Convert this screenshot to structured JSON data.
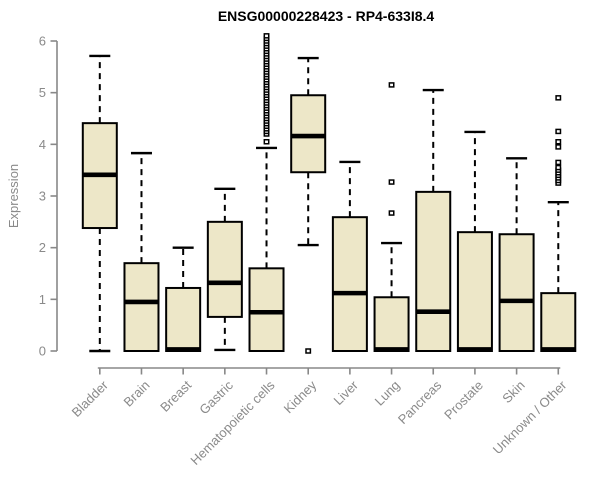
{
  "chart_data": {
    "type": "boxplot",
    "title": "ENSG00000228423 - RP4-633I8.4",
    "ylabel": "Expression",
    "xlabel": "",
    "ylim": [
      0,
      6
    ],
    "yticks": [
      0,
      1,
      2,
      3,
      4,
      5,
      6
    ],
    "grid": "off",
    "legend": "none",
    "categories": [
      "Bladder",
      "Brain",
      "Breast",
      "Gastric",
      "Hematopoietic cells",
      "Kidney",
      "Liver",
      "Lung",
      "Pancreas",
      "Prostate",
      "Skin",
      "Unknown / Other"
    ],
    "series": [
      {
        "category": "Bladder",
        "whisker_low": 0,
        "q1": 2.38,
        "median": 3.41,
        "q3": 4.41,
        "whisker_high": 5.71,
        "outliers": []
      },
      {
        "category": "Brain",
        "whisker_low": 0,
        "q1": 0,
        "median": 0.95,
        "q3": 1.7,
        "whisker_high": 3.83,
        "outliers": []
      },
      {
        "category": "Breast",
        "whisker_low": 0,
        "q1": 0,
        "median": 0.03,
        "q3": 1.22,
        "whisker_high": 2.0,
        "outliers": []
      },
      {
        "category": "Gastric",
        "whisker_low": 0.02,
        "q1": 0.66,
        "median": 1.32,
        "q3": 2.5,
        "whisker_high": 3.14,
        "outliers": []
      },
      {
        "category": "Hematopoietic cells",
        "whisker_low": 0,
        "q1": 0,
        "median": 0.75,
        "q3": 1.6,
        "whisker_high": 3.93,
        "outliers": [
          4.05,
          4.2,
          4.25,
          4.3,
          4.35,
          4.4,
          4.45,
          4.5,
          4.55,
          4.6,
          4.65,
          4.7,
          4.75,
          4.8,
          4.85,
          4.9,
          4.95,
          5.0,
          5.05,
          5.1,
          5.15,
          5.2,
          5.25,
          5.3,
          5.35,
          5.4,
          5.45,
          5.5,
          5.55,
          5.6,
          5.65,
          5.7,
          5.75,
          5.8,
          5.85,
          5.9,
          5.95,
          6.0,
          6.05,
          6.1
        ]
      },
      {
        "category": "Kidney",
        "whisker_low": 2.05,
        "q1": 3.46,
        "median": 4.16,
        "q3": 4.95,
        "whisker_high": 5.67,
        "outliers": [
          0.0
        ]
      },
      {
        "category": "Liver",
        "whisker_low": 0,
        "q1": 0,
        "median": 1.12,
        "q3": 2.59,
        "whisker_high": 3.66,
        "outliers": []
      },
      {
        "category": "Lung",
        "whisker_low": 0,
        "q1": 0,
        "median": 0.03,
        "q3": 1.04,
        "whisker_high": 2.09,
        "outliers": [
          2.67,
          3.27,
          5.15
        ]
      },
      {
        "category": "Pancreas",
        "whisker_low": 0,
        "q1": 0,
        "median": 0.76,
        "q3": 3.08,
        "whisker_high": 5.05,
        "outliers": []
      },
      {
        "category": "Prostate",
        "whisker_low": 0,
        "q1": 0,
        "median": 0.03,
        "q3": 2.3,
        "whisker_high": 4.24,
        "outliers": []
      },
      {
        "category": "Skin",
        "whisker_low": 0,
        "q1": 0,
        "median": 0.97,
        "q3": 2.26,
        "whisker_high": 3.73,
        "outliers": []
      },
      {
        "category": "Unknown / Other",
        "whisker_low": 0,
        "q1": 0,
        "median": 0.03,
        "q3": 1.12,
        "whisker_high": 2.88,
        "outliers": [
          3.25,
          3.3,
          3.35,
          3.4,
          3.45,
          3.5,
          3.55,
          3.65,
          3.95,
          4.05,
          4.25,
          4.9
        ]
      }
    ],
    "colors": {
      "box_fill": "#ede7c8",
      "box_border": "#000000",
      "median": "#000000",
      "whisker": "#000000",
      "axis": "#888888",
      "tick_label": "#8a8a8a",
      "title": "#000000",
      "background": "#ffffff"
    }
  }
}
